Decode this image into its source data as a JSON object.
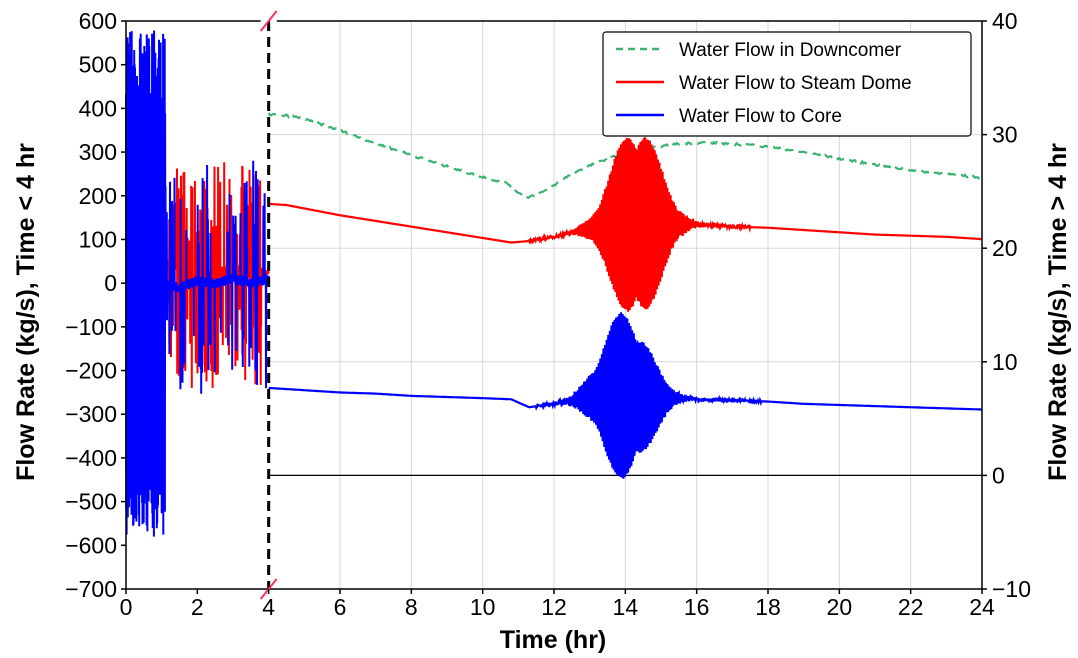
{
  "chart_data": {
    "type": "line",
    "xlabel": "Time (hr)",
    "ylabel_left": "Flow Rate (kg/s), Time < 4 hr",
    "ylabel_right": "Flow Rate (kg/s), Time > 4 hr",
    "x_ticks": [
      "0",
      "2",
      "4",
      "6",
      "8",
      "10",
      "12",
      "14",
      "16",
      "18",
      "20",
      "22",
      "24"
    ],
    "y_left_ticks": [
      "600",
      "500",
      "400",
      "300",
      "200",
      "100",
      "0",
      "−100",
      "−200",
      "−300",
      "−400",
      "−500",
      "−600",
      "−700"
    ],
    "y_right_ticks": [
      "40",
      "30",
      "20",
      "10",
      "0",
      "−10"
    ],
    "xlim": [
      0,
      24
    ],
    "ylim_left": [
      -700,
      600
    ],
    "ylim_right": [
      -10,
      40
    ],
    "axis_break_x": 4,
    "grid": true,
    "legend_position": "top-right",
    "series": [
      {
        "name": "Water Flow in Downcomer",
        "color": "#3cb371",
        "style": "dashed",
        "axis": "right",
        "x": [
          4.0,
          4.7,
          5.5,
          6.5,
          7.5,
          8.5,
          9.5,
          10.7,
          11.0,
          11.3,
          11.8,
          12.5,
          13.5,
          14.5,
          15.5,
          16.2,
          17.5,
          18.5,
          19.5,
          20.5,
          21.5,
          22.5,
          24.0
        ],
        "y": [
          31.8,
          31.6,
          30.9,
          29.8,
          28.7,
          27.7,
          26.7,
          25.7,
          24.9,
          24.5,
          25.1,
          26.6,
          27.9,
          28.7,
          29.2,
          29.3,
          29.1,
          28.7,
          28.2,
          27.6,
          27.1,
          26.7,
          26.2
        ]
      },
      {
        "name": "Water Flow to Steam Dome",
        "color": "#ff0000",
        "style": "solid",
        "axis": "right",
        "x": [
          4.0,
          4.5,
          5.0,
          6.0,
          7.0,
          8.0,
          9.0,
          10.0,
          10.8,
          11.2,
          12.0,
          12.5,
          13.0,
          13.5,
          14.0,
          14.5,
          15.0,
          15.5,
          16.0,
          17.0,
          18.0,
          19.0,
          20.0,
          21.0,
          22.0,
          23.0,
          24.0
        ],
        "y": [
          23.9,
          23.8,
          23.5,
          22.9,
          22.4,
          21.9,
          21.4,
          20.9,
          20.5,
          20.6,
          21.0,
          21.4,
          21.7,
          21.9,
          22.1,
          22.2,
          22.2,
          22.1,
          22.1,
          21.9,
          21.8,
          21.6,
          21.4,
          21.2,
          21.1,
          21.0,
          20.8
        ],
        "oscillations": [
          {
            "t_start": 11.3,
            "t_end": 17.5,
            "center_hr": 14.3,
            "spread_hr": 0.9,
            "peak_amplitude": 9.0
          }
        ],
        "early_segment": {
          "axis": "left",
          "x": [
            0.0,
            1.0,
            1.3,
            1.6,
            2.0,
            2.5,
            3.0,
            3.5,
            4.0
          ],
          "y": [
            0,
            30,
            60,
            10,
            0,
            20,
            30,
            20,
            25
          ],
          "spike_range": [
            -240,
            280
          ]
        }
      },
      {
        "name": "Water Flow to Core",
        "color": "#0000ff",
        "style": "solid",
        "axis": "right",
        "x": [
          4.0,
          5.0,
          6.0,
          7.0,
          8.0,
          9.0,
          10.0,
          10.8,
          11.3,
          12.0,
          12.5,
          13.0,
          13.5,
          14.0,
          14.5,
          15.0,
          15.5,
          16.0,
          17.0,
          18.0,
          19.0,
          20.0,
          21.0,
          22.0,
          23.0,
          24.0
        ],
        "y": [
          7.7,
          7.5,
          7.3,
          7.2,
          7.0,
          6.9,
          6.8,
          6.7,
          6.0,
          6.3,
          6.6,
          6.9,
          7.0,
          7.0,
          6.9,
          6.8,
          6.8,
          6.7,
          6.6,
          6.5,
          6.3,
          6.2,
          6.1,
          6.0,
          5.9,
          5.8
        ],
        "oscillations": [
          {
            "t_start": 11.5,
            "t_end": 17.8,
            "center_hr": 14.0,
            "spread_hr": 0.9,
            "peak_amplitude": 7.5
          }
        ],
        "early_segment": {
          "axis": "left",
          "x": [
            0.0,
            1.0,
            1.5,
            2.0,
            2.5,
            3.0,
            3.5,
            4.0
          ],
          "y": [
            0,
            0,
            -10,
            5,
            0,
            10,
            0,
            10
          ],
          "spike_range": [
            -620,
            580
          ]
        }
      }
    ]
  }
}
